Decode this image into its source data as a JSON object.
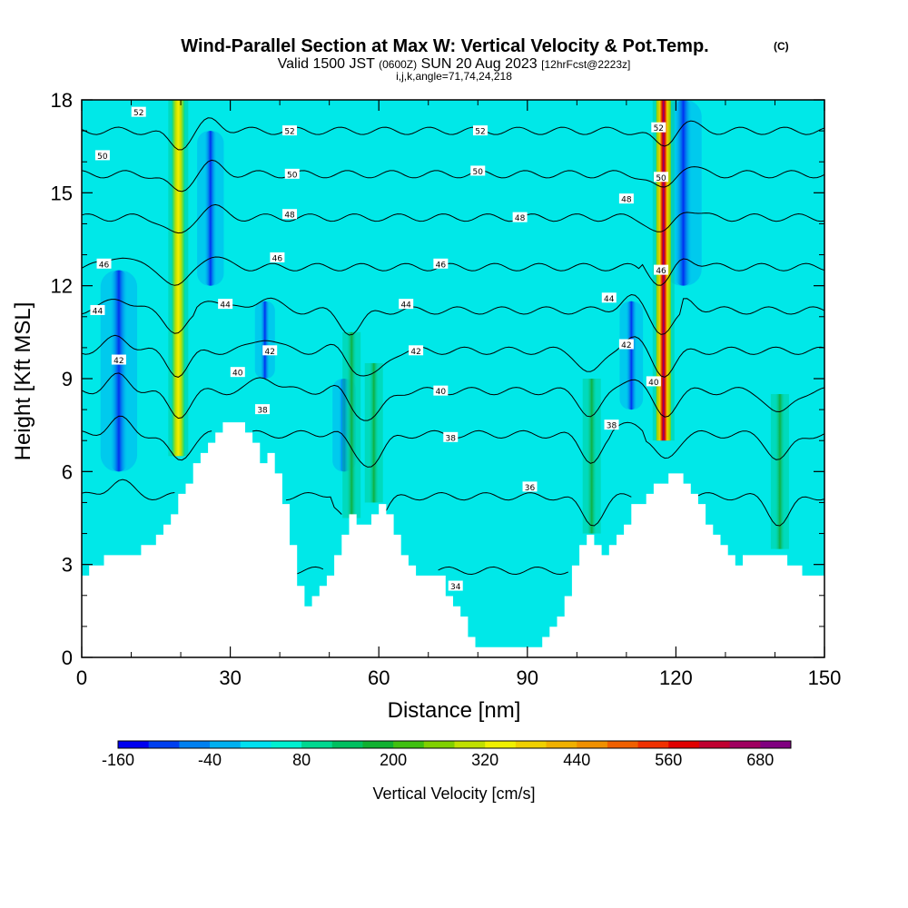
{
  "title": {
    "main": "Wind-Parallel Section at Max W: Vertical Velocity & Pot.Temp.",
    "copyright": "(C)",
    "valid_prefix": "Valid 1500 JST",
    "valid_utc": "(0600Z)",
    "valid_date": "SUN 20 Aug 2023",
    "forecast": "[12hrFcst@2223z]",
    "indices": "i,j,k,angle=71,74,24,218"
  },
  "chart_data": {
    "type": "heatmap",
    "xlabel": "Distance [nm]",
    "ylabel": "Height [Kft MSL]",
    "xlim": [
      0,
      150
    ],
    "ylim": [
      0,
      18
    ],
    "x_ticks": [
      "0",
      "30",
      "60",
      "90",
      "120",
      "150"
    ],
    "y_ticks": [
      "0",
      "3",
      "6",
      "9",
      "12",
      "15",
      "18"
    ],
    "x_tick_values": [
      0,
      30,
      60,
      90,
      120,
      150
    ],
    "y_tick_values": [
      0,
      3,
      6,
      9,
      12,
      15,
      18
    ],
    "colorbar": {
      "label": "Vertical Velocity [cm/s]",
      "tick_labels": [
        "-160",
        "-40",
        "80",
        "200",
        "320",
        "440",
        "560",
        "680"
      ],
      "colors": [
        "#0000f0",
        "#0040f0",
        "#0080f0",
        "#00b0f0",
        "#00e0f0",
        "#00f0d0",
        "#00d890",
        "#00c060",
        "#10b030",
        "#40c010",
        "#80d000",
        "#c0e000",
        "#f0f000",
        "#f0d000",
        "#f0b000",
        "#f09000",
        "#f06000",
        "#f03000",
        "#e00000",
        "#c00030",
        "#a00060",
        "#800080"
      ]
    },
    "background_color": "#00e8e8",
    "terrain": [
      [
        0,
        2.7
      ],
      [
        2,
        3.0
      ],
      [
        6,
        3.3
      ],
      [
        10,
        3.3
      ],
      [
        12,
        3.6
      ],
      [
        16,
        4.0
      ],
      [
        18,
        4.6
      ],
      [
        20,
        5.3
      ],
      [
        22,
        6.0
      ],
      [
        24,
        6.5
      ],
      [
        26,
        7.0
      ],
      [
        28,
        7.6
      ],
      [
        32,
        7.6
      ],
      [
        34,
        7.0
      ],
      [
        36,
        6.3
      ],
      [
        38,
        6.6
      ],
      [
        39,
        6.0
      ],
      [
        40,
        5.4
      ],
      [
        41,
        4.7
      ],
      [
        42,
        3.7
      ],
      [
        43,
        2.7
      ],
      [
        44,
        1.8
      ],
      [
        46,
        1.7
      ],
      [
        48,
        2.4
      ],
      [
        50,
        2.7
      ],
      [
        52,
        3.7
      ],
      [
        54,
        4.7
      ],
      [
        56,
        4.3
      ],
      [
        58,
        4.6
      ],
      [
        60,
        5.0
      ],
      [
        62,
        4.3
      ],
      [
        64,
        3.6
      ],
      [
        66,
        3.0
      ],
      [
        68,
        2.7
      ],
      [
        70,
        2.7
      ],
      [
        72,
        2.5
      ],
      [
        74,
        2.0
      ],
      [
        76,
        1.4
      ],
      [
        78,
        0.8
      ],
      [
        80,
        0.3
      ],
      [
        92,
        0.3
      ],
      [
        94,
        0.8
      ],
      [
        96,
        1.4
      ],
      [
        98,
        2.3
      ],
      [
        100,
        3.6
      ],
      [
        102,
        4.0
      ],
      [
        104,
        3.6
      ],
      [
        106,
        3.3
      ],
      [
        108,
        4.0
      ],
      [
        110,
        4.6
      ],
      [
        112,
        5.0
      ],
      [
        114,
        5.3
      ],
      [
        116,
        5.6
      ],
      [
        118,
        5.8
      ],
      [
        120,
        6.0
      ],
      [
        122,
        5.6
      ],
      [
        124,
        5.0
      ],
      [
        126,
        4.3
      ],
      [
        128,
        3.7
      ],
      [
        130,
        3.3
      ],
      [
        132,
        3.0
      ],
      [
        134,
        3.3
      ],
      [
        140,
        3.3
      ],
      [
        142,
        3.0
      ],
      [
        146,
        2.7
      ],
      [
        150,
        2.7
      ]
    ],
    "updraft_cores": [
      {
        "x": 19.5,
        "y_bottom": 6.5,
        "y_top": 18,
        "peak_cm_s": 400
      },
      {
        "x": 117.5,
        "y_bottom": 7.0,
        "y_top": 18,
        "peak_cm_s": 680
      },
      {
        "x": 54.5,
        "y_bottom": 4.5,
        "y_top": 10.5,
        "peak_cm_s": 150
      },
      {
        "x": 59.0,
        "y_bottom": 5.0,
        "y_top": 9.5,
        "peak_cm_s": 130
      },
      {
        "x": 103.0,
        "y_bottom": 4.0,
        "y_top": 9.0,
        "peak_cm_s": 110
      },
      {
        "x": 141.0,
        "y_bottom": 3.5,
        "y_top": 8.5,
        "peak_cm_s": 100
      }
    ],
    "downdraft_cores": [
      {
        "x": 7.5,
        "y_bottom": 6.0,
        "y_top": 12.5,
        "min_cm_s": -160
      },
      {
        "x": 26.0,
        "y_bottom": 12.0,
        "y_top": 17.0,
        "min_cm_s": -100
      },
      {
        "x": 121.5,
        "y_bottom": 12.0,
        "y_top": 18.0,
        "min_cm_s": -160
      },
      {
        "x": 111.0,
        "y_bottom": 8.0,
        "y_top": 11.5,
        "min_cm_s": -80
      },
      {
        "x": 53.0,
        "y_bottom": 6.0,
        "y_top": 9.0,
        "min_cm_s": -80
      },
      {
        "x": 37.0,
        "y_bottom": 9.0,
        "y_top": 11.5,
        "min_cm_s": -60
      }
    ],
    "isentropes": [
      {
        "theta": "34",
        "base_height": 2.8
      },
      {
        "theta": "36",
        "base_height": 5.2
      },
      {
        "theta": "38",
        "base_height": 7.2
      },
      {
        "theta": "40",
        "base_height": 8.6
      },
      {
        "theta": "42",
        "base_height": 9.9
      },
      {
        "theta": "44",
        "base_height": 11.2
      },
      {
        "theta": "46",
        "base_height": 12.6
      },
      {
        "theta": "48",
        "base_height": 14.2
      },
      {
        "theta": "50",
        "base_height": 15.6
      },
      {
        "theta": "52",
        "base_height": 17.0
      }
    ],
    "isentrope_labels": [
      {
        "text": "52",
        "x": 11.5,
        "y": 17.6
      },
      {
        "text": "52",
        "x": 42,
        "y": 17.0
      },
      {
        "text": "52",
        "x": 80.5,
        "y": 17.0
      },
      {
        "text": "52",
        "x": 116.5,
        "y": 17.1
      },
      {
        "text": "50",
        "x": 4.2,
        "y": 16.2
      },
      {
        "text": "50",
        "x": 42.5,
        "y": 15.6
      },
      {
        "text": "50",
        "x": 80,
        "y": 15.7
      },
      {
        "text": "50",
        "x": 117,
        "y": 15.5
      },
      {
        "text": "48",
        "x": 42,
        "y": 14.3
      },
      {
        "text": "48",
        "x": 88.5,
        "y": 14.2
      },
      {
        "text": "48",
        "x": 110,
        "y": 14.8
      },
      {
        "text": "46",
        "x": 4.5,
        "y": 12.7
      },
      {
        "text": "46",
        "x": 39.5,
        "y": 12.9
      },
      {
        "text": "46",
        "x": 72.5,
        "y": 12.7
      },
      {
        "text": "46",
        "x": 117,
        "y": 12.5
      },
      {
        "text": "44",
        "x": 3.2,
        "y": 11.2
      },
      {
        "text": "44",
        "x": 29,
        "y": 11.4
      },
      {
        "text": "44",
        "x": 65.5,
        "y": 11.4
      },
      {
        "text": "44",
        "x": 106.5,
        "y": 11.6
      },
      {
        "text": "42",
        "x": 7.5,
        "y": 9.6
      },
      {
        "text": "42",
        "x": 38,
        "y": 9.9
      },
      {
        "text": "42",
        "x": 67.5,
        "y": 9.9
      },
      {
        "text": "42",
        "x": 110,
        "y": 10.1
      },
      {
        "text": "40",
        "x": 31.5,
        "y": 9.2
      },
      {
        "text": "40",
        "x": 72.5,
        "y": 8.6
      },
      {
        "text": "40",
        "x": 115.5,
        "y": 8.9
      },
      {
        "text": "38",
        "x": 36.5,
        "y": 8.0
      },
      {
        "text": "38",
        "x": 74.5,
        "y": 7.1
      },
      {
        "text": "38",
        "x": 107,
        "y": 7.5
      },
      {
        "text": "36",
        "x": 90.5,
        "y": 5.5
      },
      {
        "text": "34",
        "x": 75.5,
        "y": 2.3
      }
    ]
  }
}
